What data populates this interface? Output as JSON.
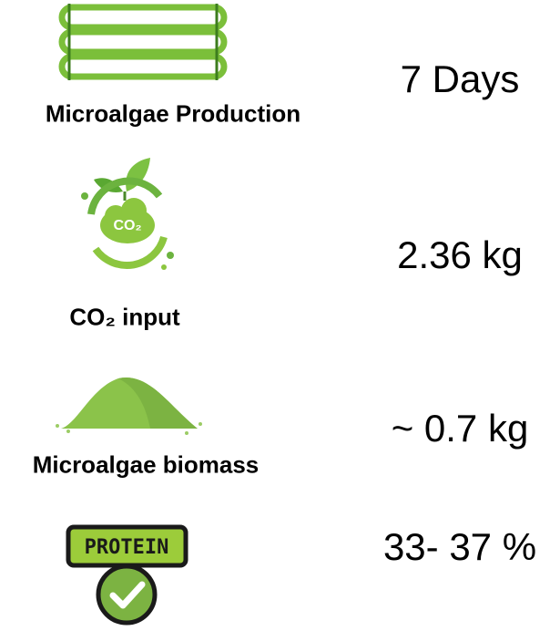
{
  "rows": [
    {
      "label": "Microalgae Production",
      "value": "7 Days"
    },
    {
      "label": "CO₂ input",
      "value": "2.36 kg",
      "icon_text": "CO₂"
    },
    {
      "label": "Microalgae biomass",
      "value": "~ 0.7 kg"
    },
    {
      "value": "33- 37 %",
      "icon_text": "PROTEIN"
    }
  ]
}
